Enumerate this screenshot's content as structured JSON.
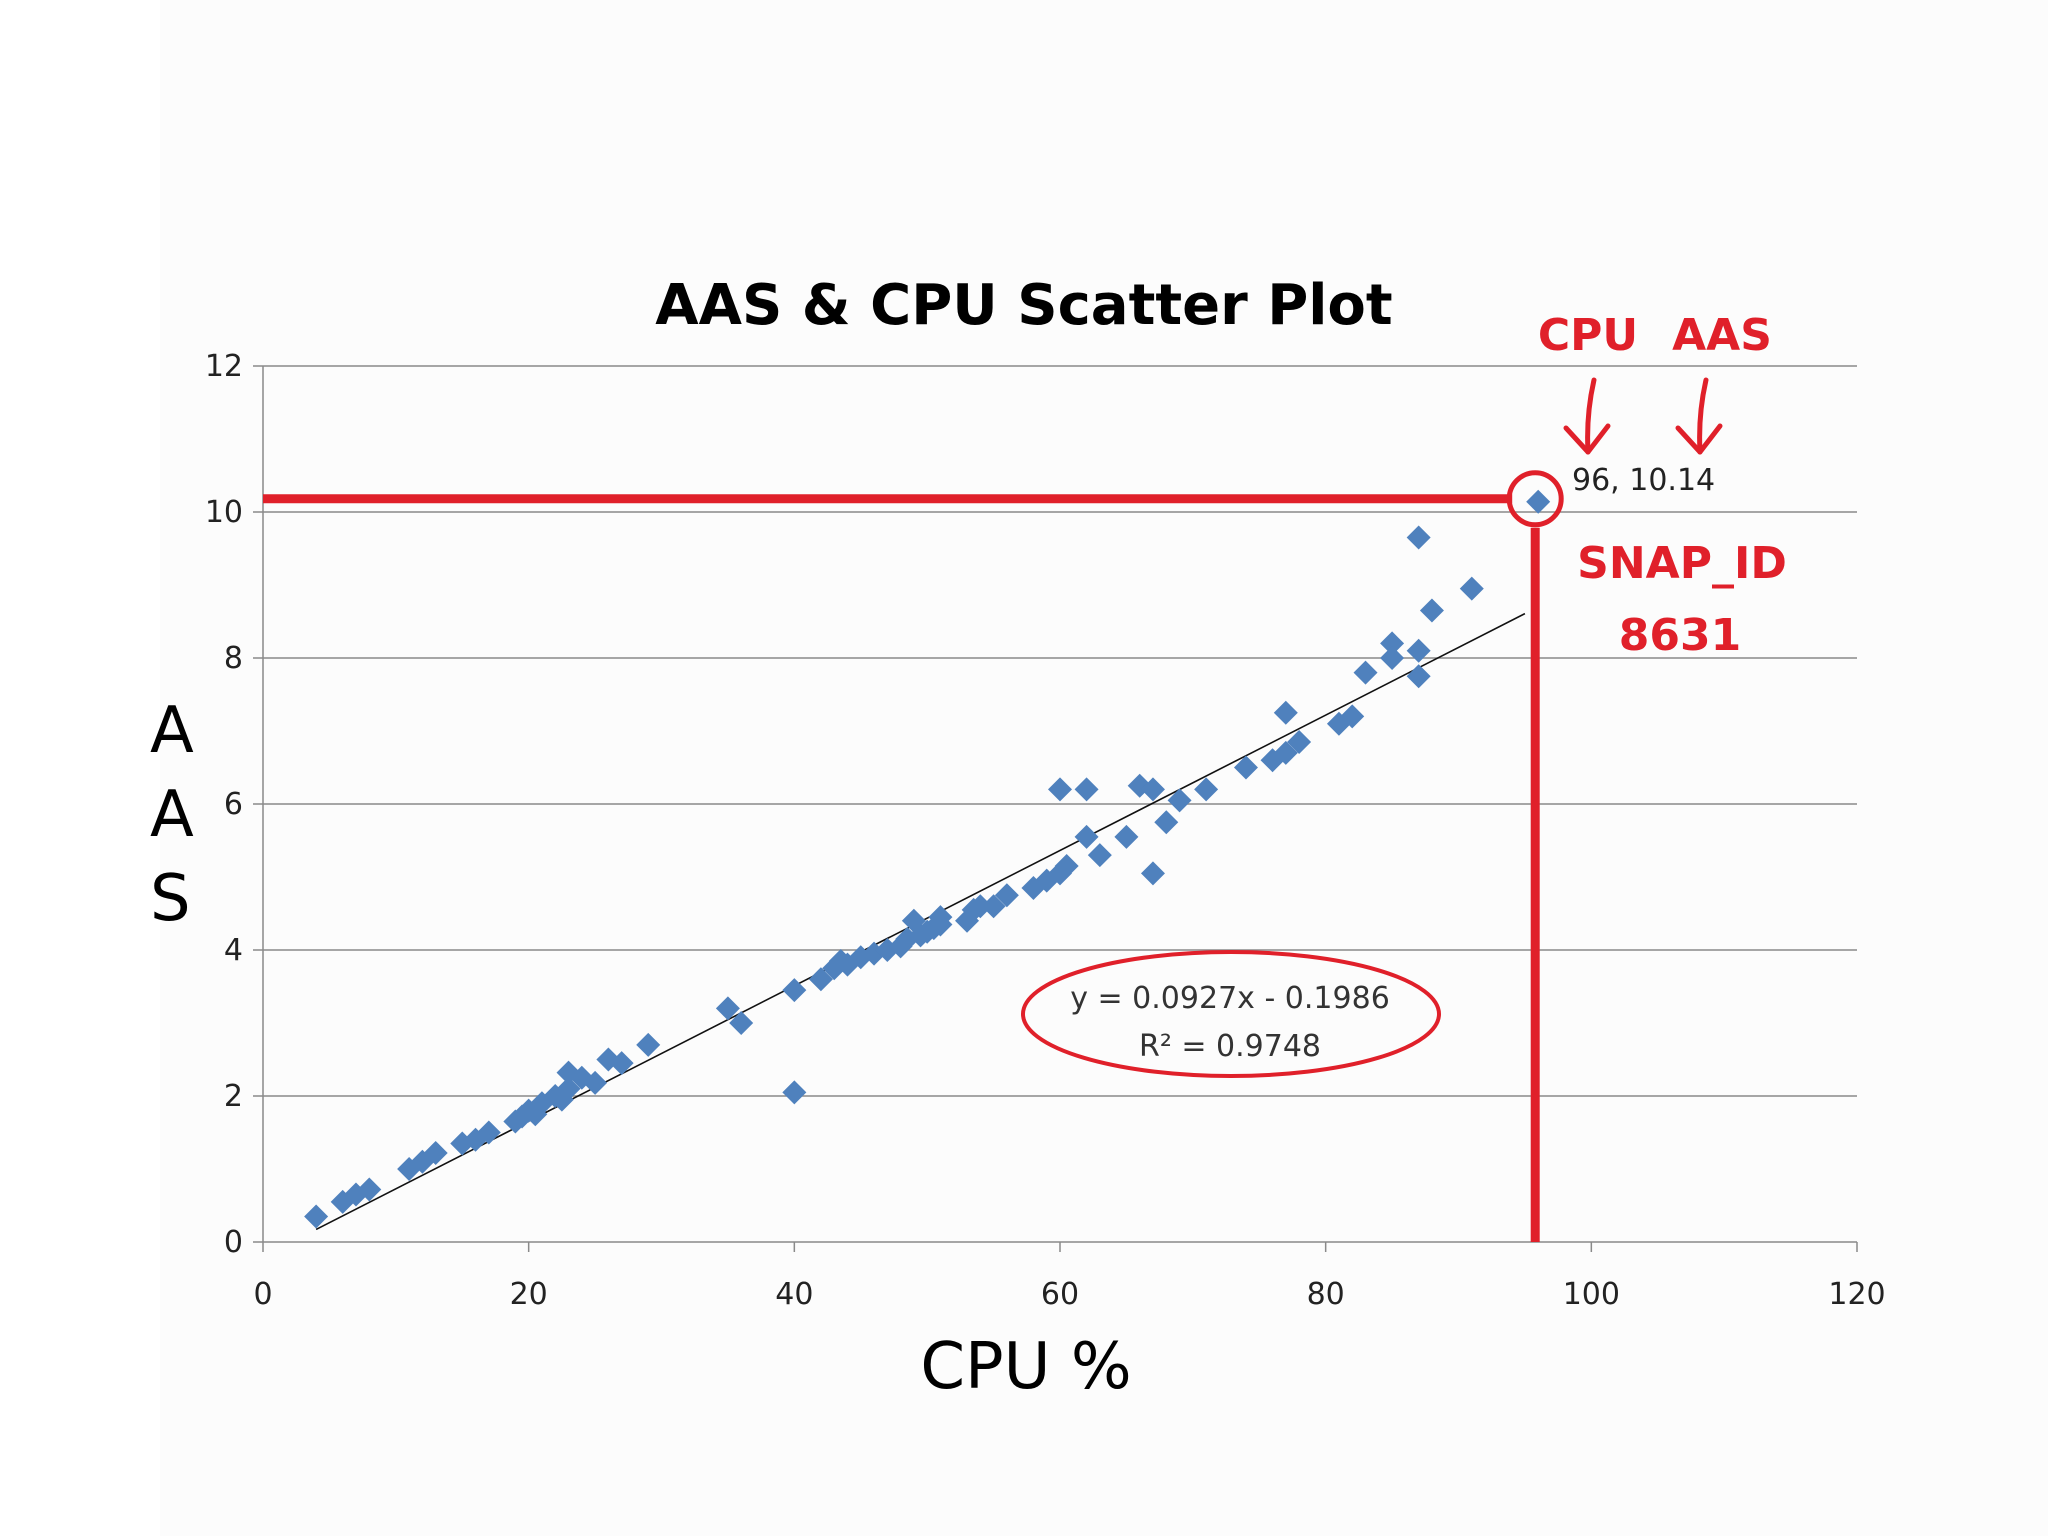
{
  "chart_data": {
    "type": "scatter",
    "title": "AAS & CPU Scatter Plot",
    "xlabel": "CPU %",
    "ylabel": "AAS",
    "xlim": [
      0,
      120
    ],
    "ylim": [
      0,
      12
    ],
    "xticks": [
      "0",
      "20",
      "40",
      "60",
      "80",
      "100",
      "120"
    ],
    "yticks": [
      "0",
      "2",
      "4",
      "6",
      "8",
      "10",
      "12"
    ],
    "grid": "horizontal",
    "legend": "none",
    "series": [
      {
        "color": "#4f81bd",
        "marker": "diamond",
        "points": [
          [
            4,
            0.35
          ],
          [
            6,
            0.55
          ],
          [
            7,
            0.65
          ],
          [
            8,
            0.72
          ],
          [
            11,
            1.0
          ],
          [
            12,
            1.1
          ],
          [
            13,
            1.22
          ],
          [
            15,
            1.35
          ],
          [
            16,
            1.4
          ],
          [
            17,
            1.5
          ],
          [
            19,
            1.65
          ],
          [
            19.5,
            1.72
          ],
          [
            20,
            1.8
          ],
          [
            20.5,
            1.75
          ],
          [
            21,
            1.9
          ],
          [
            22,
            2.0
          ],
          [
            22.5,
            1.95
          ],
          [
            23,
            2.1
          ],
          [
            23,
            2.32
          ],
          [
            24,
            2.25
          ],
          [
            25,
            2.18
          ],
          [
            26,
            2.5
          ],
          [
            27,
            2.45
          ],
          [
            29,
            2.7
          ],
          [
            35,
            3.2
          ],
          [
            36,
            3.0
          ],
          [
            40,
            3.45
          ],
          [
            40,
            2.05
          ],
          [
            42,
            3.6
          ],
          [
            43,
            3.75
          ],
          [
            43.5,
            3.85
          ],
          [
            44,
            3.8
          ],
          [
            45,
            3.9
          ],
          [
            46,
            3.95
          ],
          [
            47,
            4.0
          ],
          [
            48,
            4.05
          ],
          [
            48.5,
            4.15
          ],
          [
            49,
            4.4
          ],
          [
            49.5,
            4.2
          ],
          [
            50,
            4.25
          ],
          [
            50.5,
            4.3
          ],
          [
            51,
            4.35
          ],
          [
            51,
            4.45
          ],
          [
            53,
            4.4
          ],
          [
            53.5,
            4.55
          ],
          [
            54,
            4.6
          ],
          [
            55,
            4.6
          ],
          [
            56,
            4.75
          ],
          [
            58,
            4.85
          ],
          [
            59,
            4.95
          ],
          [
            60,
            5.05
          ],
          [
            60.5,
            5.15
          ],
          [
            60,
            6.2
          ],
          [
            62,
            6.2
          ],
          [
            62,
            5.55
          ],
          [
            63,
            5.3
          ],
          [
            65,
            5.55
          ],
          [
            66,
            6.25
          ],
          [
            67,
            6.2
          ],
          [
            67,
            5.05
          ],
          [
            68,
            5.75
          ],
          [
            69,
            6.05
          ],
          [
            71,
            6.2
          ],
          [
            74,
            6.5
          ],
          [
            76,
            6.6
          ],
          [
            77,
            6.7
          ],
          [
            77,
            7.25
          ],
          [
            78,
            6.85
          ],
          [
            81,
            7.1
          ],
          [
            82,
            7.2
          ],
          [
            83,
            7.8
          ],
          [
            85,
            8.2
          ],
          [
            85,
            8.0
          ],
          [
            87,
            8.1
          ],
          [
            87,
            7.75
          ],
          [
            87,
            9.65
          ],
          [
            88,
            8.65
          ],
          [
            91,
            8.95
          ],
          [
            96,
            10.14
          ]
        ]
      }
    ],
    "trendline": {
      "slope": 0.0927,
      "intercept": -0.1986,
      "x_range": [
        4,
        95
      ],
      "equation": "y = 0.0927x - 0.1986",
      "r_squared": "R² = 0.9748"
    },
    "annotations": {
      "color": "#e0202a",
      "highlight_point": {
        "x": 96,
        "y": 10.14,
        "label": "96, 10.14"
      },
      "cpu_label": "CPU",
      "aas_label": "AAS",
      "snap_label": "SNAP_ID",
      "snap_value": "8631"
    }
  }
}
